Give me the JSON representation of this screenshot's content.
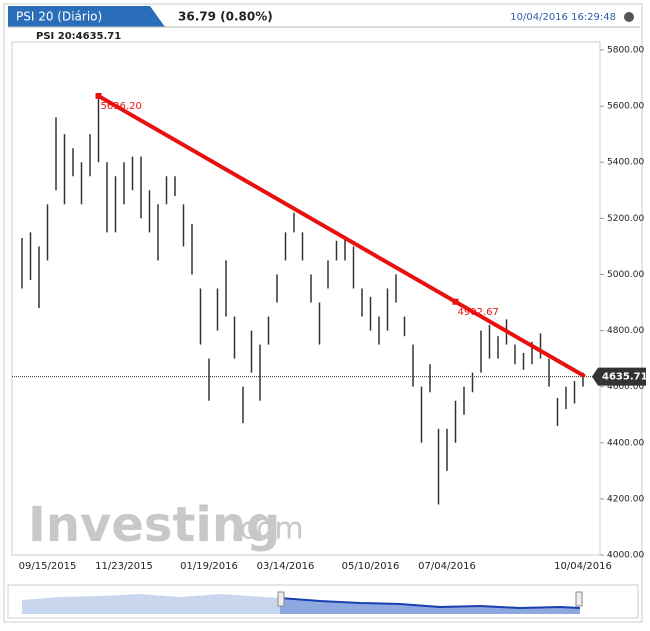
{
  "header": {
    "title": "PSI 20 (Diário)",
    "change": "36.79 (0.80%)",
    "timestamp": "10/04/2016 16:29:48",
    "legend": "PSI 20:4635.71"
  },
  "chart_data": {
    "type": "hilo",
    "categories": [
      null,
      null,
      null,
      "09/15/2015",
      null,
      null,
      null,
      null,
      null,
      null,
      null,
      null,
      "11/23/2015",
      null,
      null,
      null,
      null,
      null,
      null,
      null,
      null,
      null,
      "01/19/2016",
      null,
      null,
      null,
      null,
      null,
      null,
      null,
      null,
      "03/14/2016",
      null,
      null,
      null,
      null,
      null,
      null,
      null,
      null,
      null,
      "05/10/2016",
      null,
      null,
      null,
      null,
      null,
      null,
      null,
      null,
      "07/04/2016",
      null,
      null,
      null,
      null,
      null,
      null,
      null,
      null,
      null,
      null,
      null,
      null,
      null,
      null,
      null,
      "10/04/2016"
    ],
    "series": [
      {
        "name": "Low",
        "color": "#333333",
        "values": [
          4950,
          4980,
          4880,
          5050,
          5300,
          5250,
          5350,
          5250,
          5350,
          5400,
          5150,
          5150,
          5250,
          5300,
          5200,
          5150,
          5050,
          5250,
          5280,
          5100,
          5000,
          4750,
          4550,
          4800,
          4850,
          4700,
          4470,
          4650,
          4550,
          4750,
          4900,
          5050,
          5150,
          5050,
          4900,
          4750,
          4950,
          5050,
          5050,
          4950,
          4850,
          4800,
          4750,
          4800,
          4900,
          4780,
          4600,
          4400,
          4580,
          4180,
          4300,
          4400,
          4500,
          4580,
          4650,
          4700,
          4700,
          4750,
          4680,
          4660,
          4680,
          4700,
          4600,
          4460,
          4520,
          4540,
          4600
        ]
      },
      {
        "name": "High",
        "color": "#333333",
        "values": [
          5130,
          5150,
          5100,
          5250,
          5560,
          5500,
          5450,
          5400,
          5500,
          5636,
          5400,
          5350,
          5400,
          5420,
          5420,
          5300,
          5250,
          5350,
          5350,
          5250,
          5180,
          4950,
          4700,
          4950,
          5050,
          4850,
          4600,
          4800,
          4750,
          4850,
          5000,
          5150,
          5220,
          5150,
          5000,
          4900,
          5050,
          5120,
          5130,
          5100,
          4950,
          4920,
          4850,
          4950,
          5000,
          4850,
          4750,
          4600,
          4680,
          4450,
          4450,
          4550,
          4600,
          4650,
          4800,
          4820,
          4780,
          4840,
          4750,
          4720,
          4760,
          4790,
          4700,
          4560,
          4600,
          4620,
          4650
        ]
      }
    ],
    "ylim": [
      4000,
      5800
    ],
    "yticks": [
      {
        "value": 4000,
        "label": "4000.00"
      },
      {
        "value": 4200,
        "label": "4200.00"
      },
      {
        "value": 4400,
        "label": "4400.00"
      },
      {
        "value": 4600,
        "label": "4600.00"
      },
      {
        "value": 4800,
        "label": "4800.00"
      },
      {
        "value": 5000,
        "label": "5000.00"
      },
      {
        "value": 5200,
        "label": "5200.00"
      },
      {
        "value": 5400,
        "label": "5400.00"
      },
      {
        "value": 5600,
        "label": "5600.00"
      },
      {
        "value": 5800,
        "label": "5800.00"
      }
    ],
    "last": {
      "value": 4635.71,
      "label": "4635.71"
    },
    "trendline": {
      "color": "#e8110f",
      "points": [
        {
          "x": 9,
          "value": 5636.2,
          "label": "5636.20"
        },
        {
          "x": 51,
          "value": 4902.67,
          "label": "4902.67"
        }
      ]
    },
    "watermark": {
      "brand": "Investing",
      "suffix": ".com"
    }
  }
}
